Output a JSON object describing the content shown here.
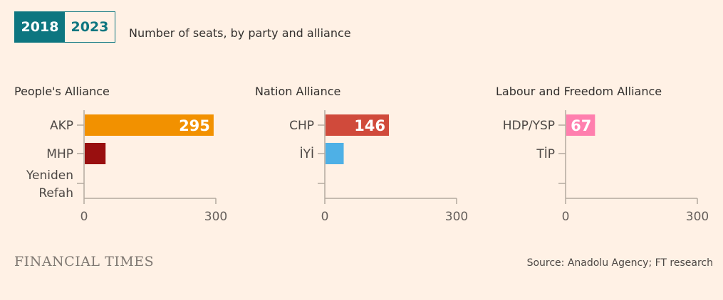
{
  "tabs": [
    {
      "label": "2018",
      "active": true
    },
    {
      "label": "2023",
      "active": false
    }
  ],
  "subtitle": "Number of seats, by party and alliance",
  "chart_data": [
    {
      "type": "bar",
      "title": "People's Alliance",
      "categories": [
        "AKP",
        "MHP",
        "Yeniden Refah"
      ],
      "values": [
        295,
        49,
        0
      ],
      "labels": [
        "295",
        "",
        ""
      ],
      "colors": [
        "#f29100",
        "#990f0f",
        "#990f0f"
      ],
      "xlim": [
        0,
        300
      ],
      "ticks": [
        "0",
        "300"
      ]
    },
    {
      "type": "bar",
      "title": "Nation Alliance",
      "categories": [
        "CHP",
        "İYİ",
        ""
      ],
      "values": [
        146,
        43,
        0
      ],
      "labels": [
        "146",
        "",
        ""
      ],
      "colors": [
        "#d04a3b",
        "#4eb0e6",
        "#4eb0e6"
      ],
      "xlim": [
        0,
        300
      ],
      "ticks": [
        "0",
        "300"
      ]
    },
    {
      "type": "bar",
      "title": "Labour and Freedom Alliance",
      "categories": [
        "HDP/YSP",
        "TİP",
        ""
      ],
      "values": [
        67,
        0,
        0
      ],
      "labels": [
        "67",
        "",
        ""
      ],
      "colors": [
        "#ff7fae",
        "#ff7fae",
        "#ff7fae"
      ],
      "xlim": [
        0,
        300
      ],
      "ticks": [
        "0",
        "300"
      ]
    }
  ],
  "footer": {
    "logo": "FINANCIAL TIMES",
    "source": "Source: Anadolu Agency; FT research"
  }
}
